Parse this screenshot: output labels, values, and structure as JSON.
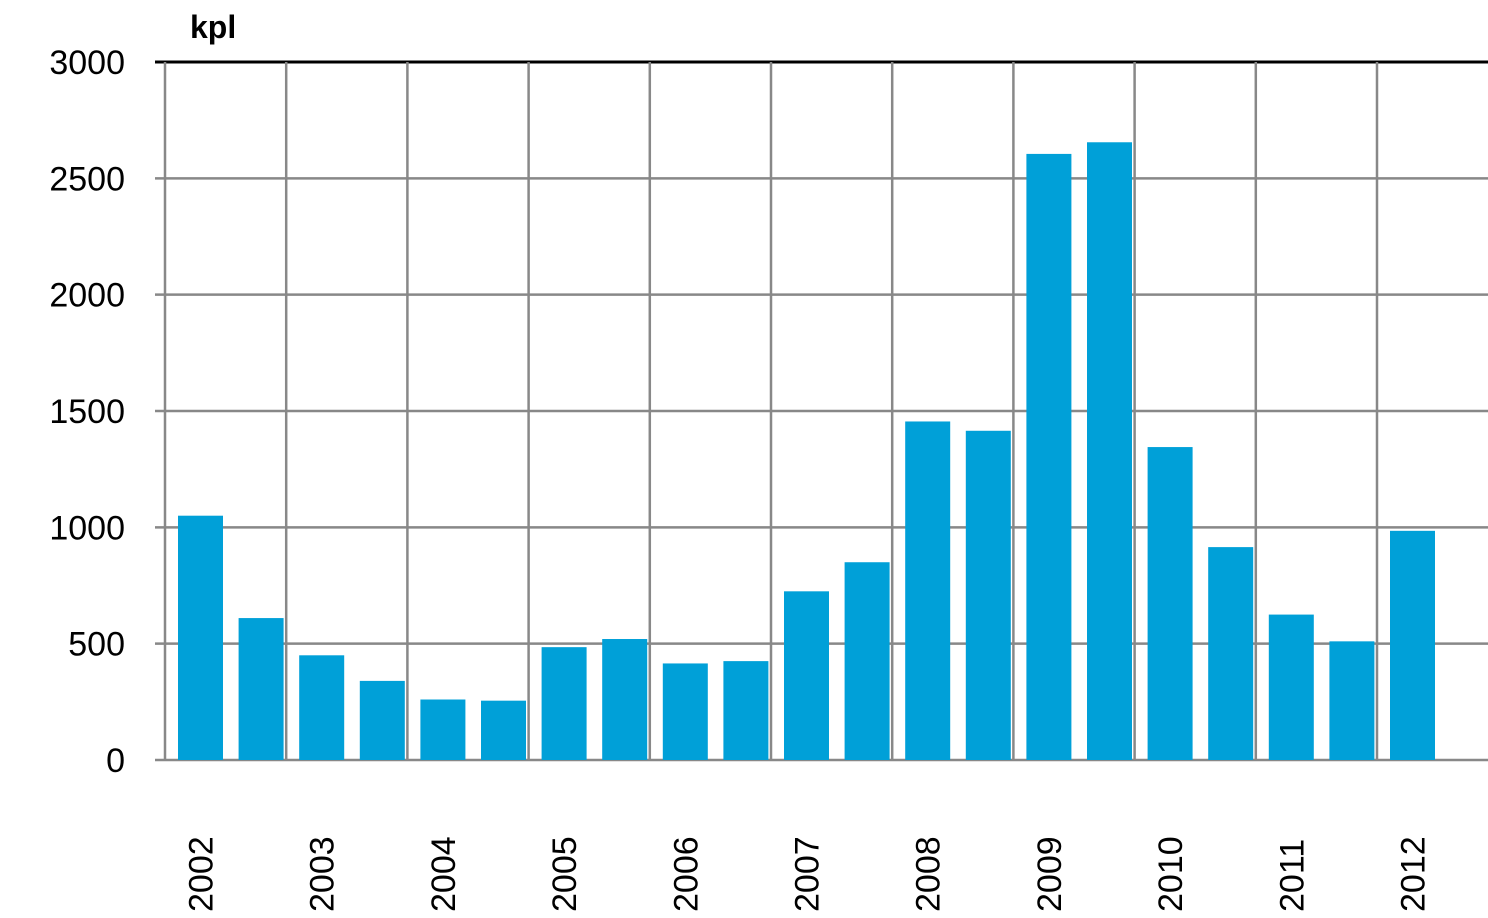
{
  "chart_data": {
    "type": "bar",
    "unit_label": "kpl",
    "ylim": [
      0,
      3000
    ],
    "yticks": [
      0,
      500,
      1000,
      1500,
      2000,
      2500,
      3000
    ],
    "x_labels": [
      "2002",
      "2003",
      "2004",
      "2005",
      "2006",
      "2007",
      "2008",
      "2009",
      "2010",
      "2011",
      "2012"
    ],
    "values": [
      1050,
      610,
      450,
      340,
      260,
      255,
      485,
      520,
      415,
      425,
      725,
      850,
      1455,
      1415,
      2605,
      2655,
      1345,
      915,
      625,
      510,
      985
    ],
    "bar_color": "#00a0d8",
    "grid": true
  }
}
